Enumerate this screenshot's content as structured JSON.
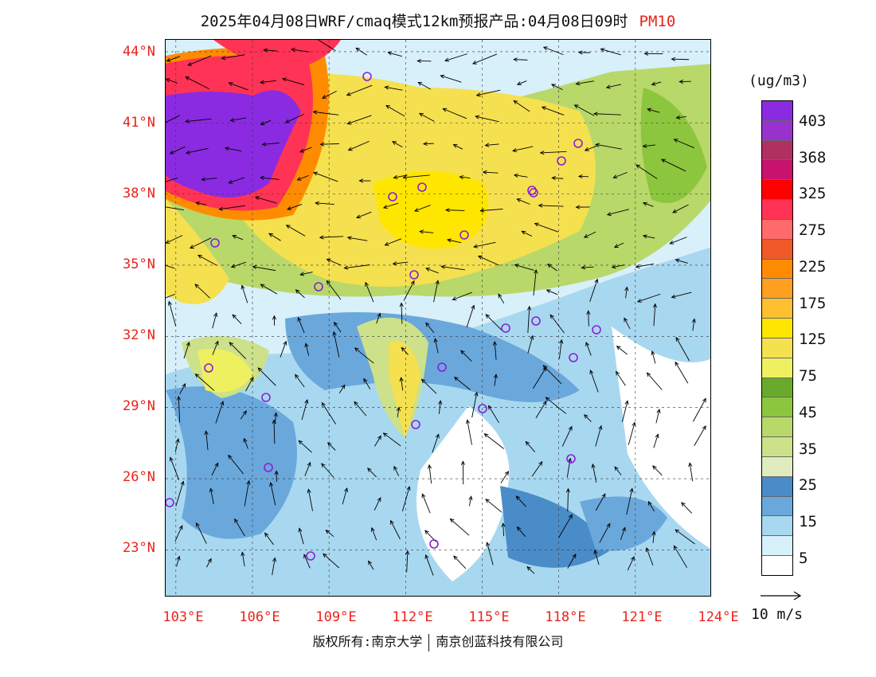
{
  "title": {
    "text": "2025年04月08日WRF/cmaq模式12km预报产品:04月08日09时",
    "pollutant": "PM10"
  },
  "map": {
    "lon_range": [
      102.6,
      124
    ],
    "lat_range": [
      21,
      44.5
    ],
    "lat_ticks": [
      "44°N",
      "41°N",
      "38°N",
      "35°N",
      "32°N",
      "29°N",
      "26°N",
      "23°N"
    ],
    "lon_ticks": [
      "103°E",
      "106°E",
      "109°E",
      "112°E",
      "115°E",
      "118°E",
      "121°E",
      "124°E"
    ],
    "station_marker_color": "#8a1fd6",
    "station_count": 25
  },
  "legend": {
    "unit": "(ug/m3)",
    "colors": [
      "#8a2be2",
      "#9932cc",
      "#b03060",
      "#c8126e",
      "#ff0000",
      "#ff3355",
      "#ff6a6a",
      "#f05a28",
      "#ff8c00",
      "#ffa020",
      "#ffc030",
      "#ffe600",
      "#f5e050",
      "#eef060",
      "#6aaa2a",
      "#8cc63e",
      "#b8d86a",
      "#cde08a",
      "#e0ecc0",
      "#4a8cc8",
      "#6aa8dc",
      "#a8d8f0",
      "#d8f0fa",
      "#ffffff"
    ],
    "labels": [
      "403",
      "368",
      "325",
      "275",
      "225",
      "175",
      "125",
      "75",
      "45",
      "35",
      "25",
      "15",
      "5"
    ]
  },
  "wind_reference": {
    "label": "10 m/s"
  },
  "footer": {
    "owner": "版权所有:南京大学",
    "company": "南京创蓝科技有限公司"
  }
}
